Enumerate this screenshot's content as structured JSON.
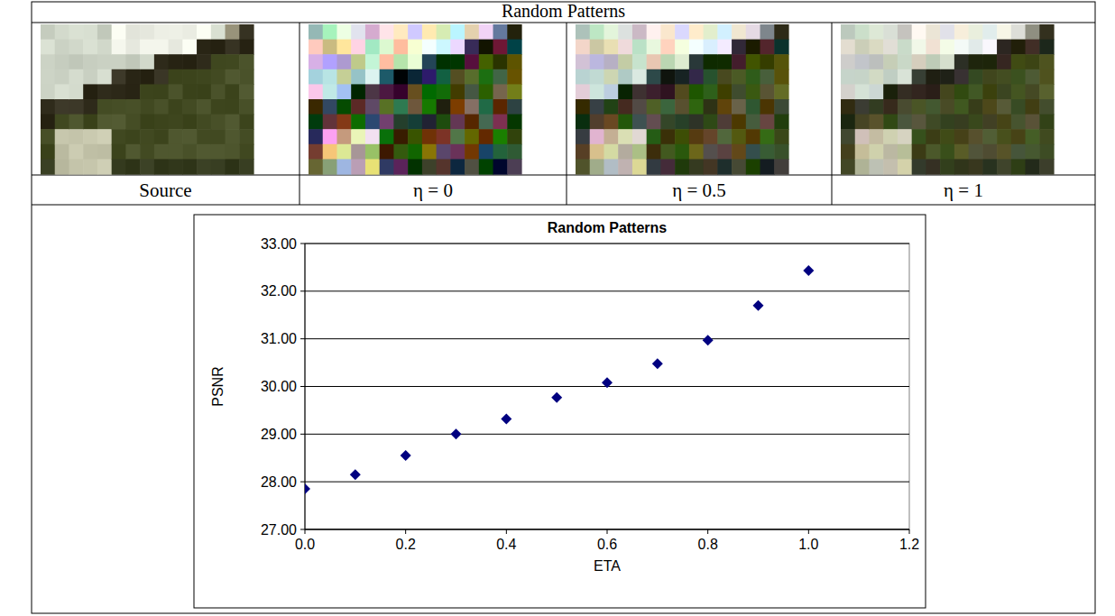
{
  "header": {
    "title": "Random Patterns"
  },
  "images": [
    {
      "caption": "Source"
    },
    {
      "caption": "η = 0"
    },
    {
      "caption": "η = 0.5"
    },
    {
      "caption": "η = 1"
    }
  ],
  "chart_data": {
    "type": "scatter",
    "title": "Random Patterns",
    "x_label": "ETA",
    "y_label": "PSNR",
    "x": [
      0,
      0.1,
      0.2,
      0.3,
      0.4,
      0.5,
      0.6,
      0.7,
      0.8,
      0.9,
      1.0
    ],
    "values": [
      27.85,
      28.15,
      28.55,
      29.0,
      29.32,
      29.77,
      30.08,
      30.48,
      30.97,
      31.7,
      32.43
    ],
    "color": "#000080",
    "marker": "diamond",
    "xlim": [
      0,
      1.2
    ],
    "xticks": [
      {
        "value": 0,
        "label": "0.0"
      },
      0.2,
      0.4,
      0.6,
      0.8,
      {
        "value": 1,
        "label": "1.0"
      },
      1.2
    ],
    "ylim": [
      27,
      33
    ],
    "yticks": [
      {
        "value": 27,
        "label": "27.00"
      },
      {
        "value": 28,
        "label": "28.00"
      },
      {
        "value": 29,
        "label": "29.00"
      },
      {
        "value": 30,
        "label": "30.00"
      },
      {
        "value": 31,
        "label": "31.00"
      },
      {
        "value": 32,
        "label": "32.00"
      },
      {
        "value": 33,
        "label": "33.00"
      }
    ],
    "grid": true
  }
}
